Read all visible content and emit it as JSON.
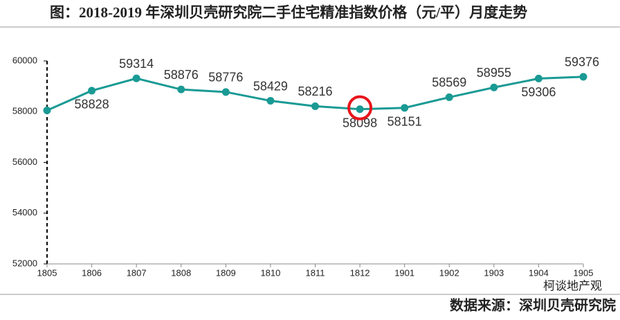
{
  "chart_data": {
    "type": "line",
    "title": "图：2018-2019 年深圳贝壳研究院二手住宅精准指数价格（元/平）月度走势",
    "categories": [
      "1805",
      "1806",
      "1807",
      "1808",
      "1809",
      "1810",
      "1811",
      "1812",
      "1901",
      "1902",
      "1903",
      "1904",
      "1905"
    ],
    "series": [
      {
        "name": "二手住宅精准指数价格",
        "color": "#1a9a94",
        "values": [
          58050,
          58828,
          59314,
          58876,
          58776,
          58429,
          58216,
          58098,
          58151,
          58569,
          58955,
          59306,
          59376
        ],
        "value_labels": [
          null,
          58828,
          59314,
          58876,
          58776,
          58429,
          58216,
          58098,
          58151,
          58569,
          58955,
          59306,
          59376
        ]
      }
    ],
    "ylim": [
      52000,
      60000
    ],
    "yticks": [
      52000,
      54000,
      56000,
      58000,
      60000
    ],
    "source": "数据来源：深圳贝壳研究院",
    "watermark": "柯谈地产观"
  }
}
